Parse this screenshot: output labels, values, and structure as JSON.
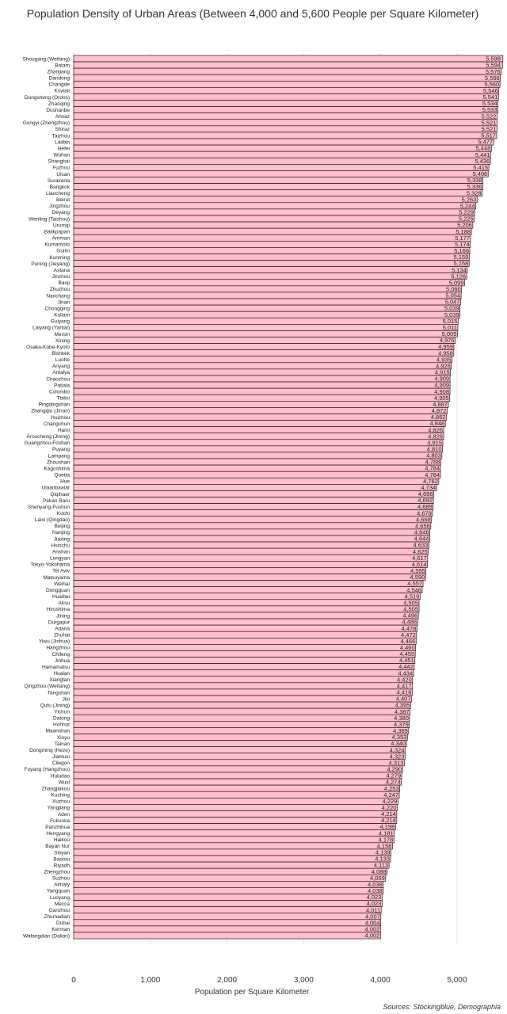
{
  "chart_data": {
    "type": "bar",
    "orientation": "horizontal",
    "title": "Population Density of Urban Areas (Between 4,000 and 5,600 People per Square Kilometer)",
    "xlabel": "Population per Square Kilometer",
    "source": "Sources: Stockingblue, Demographia",
    "xlim": [
      0,
      5600
    ],
    "xticks": [
      0,
      1000,
      2000,
      3000,
      4000,
      5000
    ],
    "xtick_labels": [
      "0",
      "1,000",
      "2,000",
      "3,000",
      "4,000",
      "5,000"
    ],
    "grid": true,
    "colors": {
      "bar": "#ffc0cb",
      "edge": "#000000"
    },
    "categories": [
      "Shougang (Weifang)",
      "Batam",
      "Zhanjiang",
      "Dandong",
      "Changde",
      "Kuwait",
      "Dongsheng (Ordos)",
      "Zhaoqing",
      "Dushanbe",
      "Ahvaz",
      "Gongyi (Zhengzhou)",
      "Shiraz",
      "Taizhou",
      "Lalibin",
      "Hefei",
      "Wuhan",
      "Shanghai",
      "Fuzhou",
      "Ulsan",
      "Surakarta",
      "Bangkok",
      "Liaocheng",
      "Beirut",
      "Jingzhou",
      "Deyang",
      "Wenling (Taizhou)",
      "Urumqi",
      "Balikpapan",
      "Amman",
      "Kumamoto",
      "Guilin",
      "Kunming",
      "Puning (Jieyang)",
      "Astana",
      "Jinzhou",
      "Baoji",
      "Zhuzhou",
      "Nanchang",
      "Jinan",
      "Chongqing",
      "Kollam",
      "Guiyang",
      "Laiyang (Yantai)",
      "Mersin",
      "Xining",
      "Osaka-Kobe-Kyoto",
      "Bishkek",
      "Luohe",
      "Anyang",
      "Antalya",
      "Chaozhou",
      "Patiala",
      "Colombo",
      "Tbilisi",
      "Pingdingshan",
      "Zhangqiu (Jinan)",
      "Huizhou",
      "Changchun",
      "Hami",
      "Ároucheng (Jining)",
      "Guangzhou-Foshan",
      "Puyang",
      "Lampang",
      "Zhoushan",
      "Kagoshima",
      "Quetta",
      "Hue",
      "Ulaanbaatar",
      "Qiqihaer",
      "Pekan Baru",
      "Shenyang-Fushun",
      "Kochi",
      "Laixi (Qingdao)",
      "Beijing",
      "Nanjing",
      "Jiaxing",
      "Hsinchu",
      "Anshan",
      "Longyan",
      "Tokyo-Yokohama",
      "Tel Aviv",
      "Matsuyama",
      "Weihai",
      "Dongguan",
      "Huaibei",
      "Aksu",
      "Hiroshima",
      "Jining",
      "Durgapur",
      "Adana",
      "Zhuhai",
      "Yiwu (Jinhua)",
      "Hangzhou",
      "Chifeng",
      "Jinhua",
      "Hamamatsu",
      "Huaian",
      "Xiangtan",
      "Qingzhou (Weifang)",
      "Tangshan",
      "Jixi",
      "Qufu (Jining)",
      "Yichun",
      "Datong",
      "Hohhot",
      "Maanshan",
      "Xinyu",
      "Tainan",
      "Dongming (Heze)",
      "Jiamusi",
      "Cilegon",
      "Fuyang (Hangzhou)",
      "Huludao",
      "Wuxi",
      "Zhangjiakou",
      "Kuching",
      "Xuzhou",
      "Yangjiang",
      "Aden",
      "Fukuoka",
      "Panzhihua",
      "Hengyang",
      "Haikou",
      "Bayan Nur",
      "Shiyan",
      "Baotou",
      "Riyadh",
      "Zhengzhou",
      "Suzhou",
      "Almaty",
      "Yangquan",
      "Luoyang",
      "Mecca",
      "Ganzhou",
      "Zhumadian",
      "Dubai",
      "Kerman",
      "Wafangdian (Dalian)"
    ],
    "values": [
      5598,
      5594,
      5576,
      5566,
      5560,
      5546,
      5541,
      5534,
      5533,
      5522,
      5521,
      5521,
      5517,
      5477,
      5448,
      5441,
      5436,
      5415,
      5406,
      5338,
      5336,
      5328,
      5263,
      5244,
      5229,
      5225,
      5206,
      5188,
      5177,
      5174,
      5166,
      5159,
      5158,
      5134,
      5126,
      5099,
      5060,
      5054,
      5047,
      5039,
      5039,
      5015,
      5011,
      5005,
      4976,
      4959,
      4958,
      4935,
      4926,
      4915,
      4909,
      4909,
      4908,
      4905,
      4887,
      4872,
      4862,
      4848,
      4826,
      4826,
      4815,
      4810,
      4803,
      4788,
      4784,
      4784,
      4762,
      4734,
      4696,
      4692,
      4689,
      4679,
      4668,
      4658,
      4646,
      4644,
      4633,
      4625,
      4617,
      4614,
      4595,
      4590,
      4557,
      4546,
      4519,
      4505,
      4505,
      4496,
      4486,
      4478,
      4472,
      4466,
      4460,
      4455,
      4451,
      4442,
      4434,
      4420,
      4417,
      4416,
      4407,
      4395,
      4387,
      4380,
      4379,
      4369,
      4353,
      4340,
      4324,
      4323,
      4313,
      4290,
      4279,
      4274,
      4253,
      4247,
      4229,
      4220,
      4214,
      4214,
      4198,
      4181,
      4178,
      4158,
      4139,
      4133,
      4113,
      4088,
      4069,
      4038,
      4038,
      4023,
      4023,
      4011,
      4007,
      4004,
      4002,
      4002
    ],
    "value_labels": [
      "5,598",
      "5,594",
      "5,576",
      "5,566",
      "5,560",
      "5,546",
      "5,541",
      "5,534",
      "5,533",
      "5,522",
      "5,521",
      "5,521",
      "5,517",
      "5,477",
      "5,448",
      "5,441",
      "5,436",
      "5,415",
      "5,406",
      "5,338",
      "5,336",
      "5,328",
      "5,263",
      "5,244",
      "5,229",
      "5,225",
      "5,206",
      "5,188",
      "5,177",
      "5,174",
      "5,166",
      "5,159",
      "5,158",
      "5,134",
      "5,126",
      "5,099",
      "5,060",
      "5,054",
      "5,047",
      "5,039",
      "5,039",
      "5,015",
      "5,011",
      "5,005",
      "4,976",
      "4,959",
      "4,958",
      "4,935",
      "4,926",
      "4,915",
      "4,909",
      "4,909",
      "4,908",
      "4,905",
      "4,887",
      "4,872",
      "4,862",
      "4,848",
      "4,826",
      "4,826",
      "4,815",
      "4,810",
      "4,803",
      "4,788",
      "4,784",
      "4,784",
      "4,762",
      "4,734",
      "4,696",
      "4,692",
      "4,689",
      "4,679",
      "4,668",
      "4,658",
      "4,646",
      "4,644",
      "4,633",
      "4,625",
      "4,617",
      "4,614",
      "4,595",
      "4,590",
      "4,557",
      "4,546",
      "4,519",
      "4,505",
      "4,505",
      "4,496",
      "4,486",
      "4,478",
      "4,472",
      "4,466",
      "4,460",
      "4,455",
      "4,451",
      "4,442",
      "4,434",
      "4,420",
      "4,417",
      "4,416",
      "4,407",
      "4,395",
      "4,387",
      "4,380",
      "4,379",
      "4,369",
      "4,353",
      "4,340",
      "4,324",
      "4,323",
      "4,313",
      "4,290",
      "4,279",
      "4,274",
      "4,253",
      "4,247",
      "4,229",
      "4,220",
      "4,214",
      "4,214",
      "4,198",
      "4,181",
      "4,178",
      "4,158",
      "4,139",
      "4,133",
      "4,113",
      "4,088",
      "4,069",
      "4,038",
      "4,038",
      "4,023",
      "4,023",
      "4,011",
      "4,007",
      "4,004",
      "4,002",
      "4,002"
    ]
  }
}
